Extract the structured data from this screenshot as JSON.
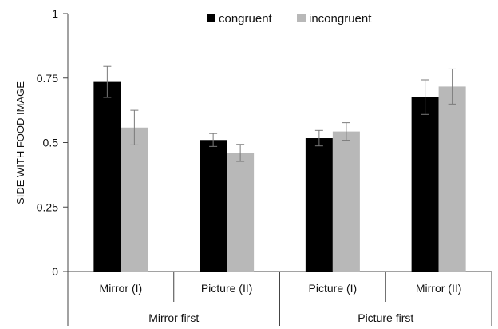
{
  "chart_data": {
    "type": "bar",
    "ylabel": "SIDE WITH  FOOD IMAGE",
    "xlabel": "",
    "ylim": [
      0,
      1
    ],
    "yticks": [
      0,
      0.25,
      0.5,
      0.75,
      1
    ],
    "ytick_labels": [
      "0",
      "0.25",
      "0.5",
      "0.75",
      "1"
    ],
    "categories": [
      "Mirror (I)",
      "Picture (II)",
      "Picture  (I)",
      "Mirror  (II)"
    ],
    "groups": [
      {
        "label": "Mirror first",
        "categories": [
          "Mirror (I)",
          "Picture (II)"
        ]
      },
      {
        "label": "Picture first",
        "categories": [
          "Picture  (I)",
          "Mirror  (II)"
        ]
      }
    ],
    "legend_position": "top",
    "grid": false,
    "series": [
      {
        "name": "congruent",
        "color": "#000000",
        "values": [
          0.735,
          0.51,
          0.517,
          0.676
        ],
        "errors": [
          0.06,
          0.025,
          0.03,
          0.067
        ]
      },
      {
        "name": "incongruent",
        "color": "#b8b8b8",
        "values": [
          0.558,
          0.46,
          0.543,
          0.717
        ],
        "errors": [
          0.067,
          0.033,
          0.034,
          0.068
        ]
      }
    ]
  }
}
